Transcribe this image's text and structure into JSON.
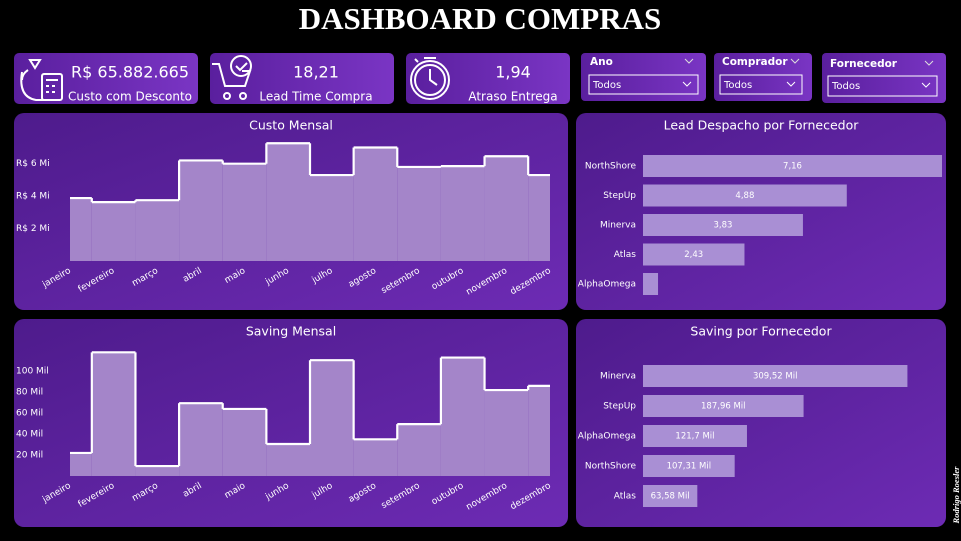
{
  "header": {
    "title": "DASHBOARD COMPRAS"
  },
  "kpis": [
    {
      "value": "R$ 65.882.665",
      "label": "Custo com Desconto"
    },
    {
      "value": "18,21",
      "label": "Lead Time Compra"
    },
    {
      "value": "1,94",
      "label": "Atraso Entrega"
    }
  ],
  "filters": [
    {
      "label": "Ano",
      "selected": "Todos"
    },
    {
      "label": "Comprador",
      "selected": "Todos"
    },
    {
      "label": "Fornecedor",
      "selected": "Todos"
    }
  ],
  "chart_data": [
    {
      "type": "step-area",
      "title": "Custo Mensal",
      "categories": [
        "janeiro",
        "fevereiro",
        "março",
        "abril",
        "maio",
        "junho",
        "julho",
        "agosto",
        "setembro",
        "outubro",
        "novembro",
        "dezembro"
      ],
      "values": [
        3.88,
        3.63,
        3.75,
        6.2,
        6.0,
        7.26,
        5.3,
        7.0,
        5.8,
        5.85,
        6.46,
        5.3
      ],
      "ylim": [
        0,
        7.4
      ],
      "yticks": [
        {
          "value": 2,
          "label": "R$ 2 Mi"
        },
        {
          "value": 4,
          "label": "R$ 4 Mi"
        },
        {
          "value": 6,
          "label": "R$ 6 Mi"
        }
      ],
      "color": "#a485c9",
      "line_color": "#ffffff",
      "grid": false
    },
    {
      "type": "hbar",
      "title": "Lead Despacho por Fornecedor",
      "categories": [
        "NorthShore",
        "StepUp",
        "Minerva",
        "Atlas",
        "AlphaOmega"
      ],
      "values": [
        7.16,
        4.88,
        3.83,
        2.43,
        0.36
      ],
      "value_labels": [
        "7,16",
        "4,88",
        "3,83",
        "2,43",
        null
      ],
      "xlim": [
        0,
        7.16
      ],
      "color": "#a98fd4"
    },
    {
      "type": "step-area",
      "title": "Saving Mensal",
      "categories": [
        "janeiro",
        "fevereiro",
        "março",
        "abril",
        "maio",
        "junho",
        "julho",
        "agosto",
        "setembro",
        "outubro",
        "novembro",
        "dezembro"
      ],
      "values": [
        22,
        118,
        9.5,
        69.5,
        64,
        30.5,
        110.5,
        35,
        49.5,
        113,
        82,
        86
      ],
      "ylim": [
        0,
        125
      ],
      "yticks": [
        {
          "value": 20,
          "label": "20 Mil"
        },
        {
          "value": 40,
          "label": "40 Mil"
        },
        {
          "value": 60,
          "label": "60 Mil"
        },
        {
          "value": 80,
          "label": "80 Mil"
        },
        {
          "value": 100,
          "label": "100 Mil"
        }
      ],
      "color": "#a485c9",
      "line_color": "#ffffff",
      "grid": false
    },
    {
      "type": "hbar",
      "title": "Saving por Fornecedor",
      "categories": [
        "Minerva",
        "StepUp",
        "AlphaOmega",
        "NorthShore",
        "Atlas"
      ],
      "values": [
        309.52,
        187.96,
        121.7,
        107.31,
        63.58
      ],
      "value_labels": [
        "309,52 Mil",
        "187,96 Mil",
        "121,7 Mil",
        "107,31 Mil",
        "63,58 Mil"
      ],
      "xlim": [
        0,
        350
      ],
      "color": "#a98fd4"
    }
  ],
  "signature": "Rodrigo Roesler"
}
